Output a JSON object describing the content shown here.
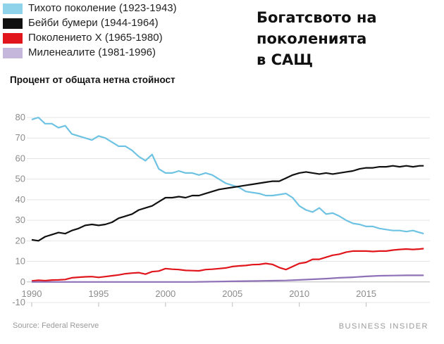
{
  "title_lines": [
    "Богатсвото на",
    "поколенията",
    "в САЩ"
  ],
  "y_axis_label": "Процент от общата нетна стойност",
  "legend": [
    {
      "label": "Тихото поколение (1923-1943)",
      "color": "#8fd3ea"
    },
    {
      "label": "Бейби бумери (1944-1964)",
      "color": "#111111"
    },
    {
      "label": "Поколението X (1965-1980)",
      "color": "#e0161c"
    },
    {
      "label": "Миленеалите (1981-1996)",
      "color": "#c5b6dc"
    }
  ],
  "footer": {
    "source": "Source: Federal Reserve",
    "brand": "BUSINESS INSIDER"
  },
  "chart_data": {
    "type": "line",
    "ylabel": "Процент от общата нетна стойност",
    "xlim": [
      1990,
      2019.5
    ],
    "ylim": [
      -10,
      80
    ],
    "x_ticks": [
      1990,
      1995,
      2000,
      2005,
      2010,
      2015
    ],
    "y_ticks": [
      -10,
      0,
      10,
      20,
      30,
      40,
      50,
      60,
      70,
      80
    ],
    "grid": "horizontal",
    "series": [
      {
        "name": "Тихото поколение (1923-1943)",
        "color": "#6ec3e3",
        "points": [
          [
            1990,
            79
          ],
          [
            1990.5,
            80
          ],
          [
            1991,
            77
          ],
          [
            1991.5,
            77
          ],
          [
            1992,
            75
          ],
          [
            1992.5,
            76
          ],
          [
            1993,
            72
          ],
          [
            1994,
            70
          ],
          [
            1994.5,
            69
          ],
          [
            1995,
            71
          ],
          [
            1995.5,
            70
          ],
          [
            1996,
            68
          ],
          [
            1996.5,
            66
          ],
          [
            1997,
            66
          ],
          [
            1997.5,
            64
          ],
          [
            1998,
            61
          ],
          [
            1998.5,
            59
          ],
          [
            1999,
            62
          ],
          [
            1999.5,
            55
          ],
          [
            2000,
            53
          ],
          [
            2000.5,
            53
          ],
          [
            2001,
            54
          ],
          [
            2001.5,
            53
          ],
          [
            2002,
            53
          ],
          [
            2002.5,
            52
          ],
          [
            2003,
            53
          ],
          [
            2003.5,
            52
          ],
          [
            2004,
            50
          ],
          [
            2004.5,
            48
          ],
          [
            2005,
            47
          ],
          [
            2005.5,
            46
          ],
          [
            2006,
            44
          ],
          [
            2006.5,
            43.5
          ],
          [
            2007,
            43
          ],
          [
            2007.5,
            42
          ],
          [
            2008,
            42
          ],
          [
            2008.5,
            42.5
          ],
          [
            2009,
            43
          ],
          [
            2009.5,
            41
          ],
          [
            2010,
            37
          ],
          [
            2010.5,
            35
          ],
          [
            2011,
            34
          ],
          [
            2011.5,
            36
          ],
          [
            2012,
            33
          ],
          [
            2012.5,
            33.5
          ],
          [
            2013,
            32
          ],
          [
            2013.5,
            30
          ],
          [
            2014,
            28.5
          ],
          [
            2014.5,
            28
          ],
          [
            2015,
            27
          ],
          [
            2015.5,
            27
          ],
          [
            2016,
            26
          ],
          [
            2016.5,
            25.5
          ],
          [
            2017,
            25
          ],
          [
            2017.5,
            25
          ],
          [
            2018,
            24.5
          ],
          [
            2018.5,
            25
          ],
          [
            2019,
            24
          ],
          [
            2019.3,
            23.5
          ]
        ]
      },
      {
        "name": "Бейби бумери (1944-1964)",
        "color": "#111111",
        "points": [
          [
            1990,
            20.5
          ],
          [
            1990.5,
            20
          ],
          [
            1991,
            22
          ],
          [
            1991.5,
            23
          ],
          [
            1992,
            24
          ],
          [
            1992.5,
            23.5
          ],
          [
            1993,
            25
          ],
          [
            1993.5,
            26
          ],
          [
            1994,
            27.5
          ],
          [
            1994.5,
            28
          ],
          [
            1995,
            27.5
          ],
          [
            1995.5,
            28
          ],
          [
            1996,
            29
          ],
          [
            1996.5,
            31
          ],
          [
            1997,
            32
          ],
          [
            1997.5,
            33
          ],
          [
            1998,
            35
          ],
          [
            1998.5,
            36
          ],
          [
            1999,
            37
          ],
          [
            1999.5,
            39
          ],
          [
            2000,
            41
          ],
          [
            2000.5,
            41
          ],
          [
            2001,
            41.5
          ],
          [
            2001.5,
            41
          ],
          [
            2002,
            42
          ],
          [
            2002.5,
            42
          ],
          [
            2003,
            43
          ],
          [
            2003.5,
            44
          ],
          [
            2004,
            45
          ],
          [
            2004.5,
            45.5
          ],
          [
            2005,
            46
          ],
          [
            2005.5,
            46.5
          ],
          [
            2006,
            47
          ],
          [
            2006.5,
            47.5
          ],
          [
            2007,
            48
          ],
          [
            2007.5,
            48.5
          ],
          [
            2008,
            49
          ],
          [
            2008.5,
            49
          ],
          [
            2009,
            50.5
          ],
          [
            2009.5,
            52
          ],
          [
            2010,
            53
          ],
          [
            2010.5,
            53.5
          ],
          [
            2011,
            53
          ],
          [
            2011.5,
            52.5
          ],
          [
            2012,
            53
          ],
          [
            2012.5,
            52.5
          ],
          [
            2013,
            53
          ],
          [
            2013.5,
            53.5
          ],
          [
            2014,
            54
          ],
          [
            2014.5,
            55
          ],
          [
            2015,
            55.5
          ],
          [
            2015.5,
            55.5
          ],
          [
            2016,
            56
          ],
          [
            2016.5,
            56
          ],
          [
            2017,
            56.5
          ],
          [
            2017.5,
            56
          ],
          [
            2018,
            56.5
          ],
          [
            2018.5,
            56
          ],
          [
            2019,
            56.5
          ],
          [
            2019.3,
            56.5
          ]
        ]
      },
      {
        "name": "Поколението X (1965-1980)",
        "color": "#e0161c",
        "points": [
          [
            1990,
            0.5
          ],
          [
            1990.5,
            0.8
          ],
          [
            1991,
            0.6
          ],
          [
            1991.5,
            0.9
          ],
          [
            1992,
            1
          ],
          [
            1992.5,
            1.2
          ],
          [
            1993,
            2
          ],
          [
            1993.5,
            2.3
          ],
          [
            1994,
            2.5
          ],
          [
            1994.5,
            2.6
          ],
          [
            1995,
            2.2
          ],
          [
            1995.5,
            2.6
          ],
          [
            1996,
            3
          ],
          [
            1996.5,
            3.4
          ],
          [
            1997,
            4
          ],
          [
            1997.5,
            4.3
          ],
          [
            1998,
            4.5
          ],
          [
            1998.5,
            3.8
          ],
          [
            1999,
            5
          ],
          [
            1999.5,
            5.3
          ],
          [
            2000,
            6.5
          ],
          [
            2000.5,
            6.2
          ],
          [
            2001,
            6
          ],
          [
            2001.5,
            5.6
          ],
          [
            2002,
            5.5
          ],
          [
            2002.5,
            5.4
          ],
          [
            2003,
            6
          ],
          [
            2003.5,
            6.2
          ],
          [
            2004,
            6.5
          ],
          [
            2004.5,
            6.8
          ],
          [
            2005,
            7.5
          ],
          [
            2005.5,
            7.8
          ],
          [
            2006,
            8
          ],
          [
            2006.5,
            8.4
          ],
          [
            2007,
            8.5
          ],
          [
            2007.5,
            9
          ],
          [
            2008,
            8.5
          ],
          [
            2008.5,
            7
          ],
          [
            2009,
            6
          ],
          [
            2009.5,
            7.5
          ],
          [
            2010,
            9
          ],
          [
            2010.5,
            9.5
          ],
          [
            2011,
            11
          ],
          [
            2011.5,
            11
          ],
          [
            2012,
            12
          ],
          [
            2012.5,
            13
          ],
          [
            2013,
            13.5
          ],
          [
            2013.5,
            14.5
          ],
          [
            2014,
            15
          ],
          [
            2014.5,
            15
          ],
          [
            2015,
            15
          ],
          [
            2015.5,
            14.8
          ],
          [
            2016,
            15
          ],
          [
            2016.5,
            15
          ],
          [
            2017,
            15.5
          ],
          [
            2017.5,
            15.8
          ],
          [
            2018,
            16
          ],
          [
            2018.5,
            15.8
          ],
          [
            2019,
            16
          ],
          [
            2019.3,
            16.2
          ]
        ]
      },
      {
        "name": "Миленеалите (1981-1996)",
        "color": "#8e71b7",
        "points": [
          [
            1990,
            0
          ],
          [
            1993,
            0
          ],
          [
            1996,
            0
          ],
          [
            1999,
            0
          ],
          [
            2002,
            0
          ],
          [
            2003,
            0.1
          ],
          [
            2004,
            0.2
          ],
          [
            2005,
            0.3
          ],
          [
            2006,
            0.4
          ],
          [
            2007,
            0.5
          ],
          [
            2008,
            0.6
          ],
          [
            2009,
            0.7
          ],
          [
            2010,
            1
          ],
          [
            2011,
            1.3
          ],
          [
            2012,
            1.6
          ],
          [
            2013,
            2
          ],
          [
            2014,
            2.3
          ],
          [
            2015,
            2.7
          ],
          [
            2016,
            3
          ],
          [
            2017,
            3.1
          ],
          [
            2018,
            3.2
          ],
          [
            2019,
            3.2
          ],
          [
            2019.3,
            3.2
          ]
        ]
      }
    ]
  }
}
